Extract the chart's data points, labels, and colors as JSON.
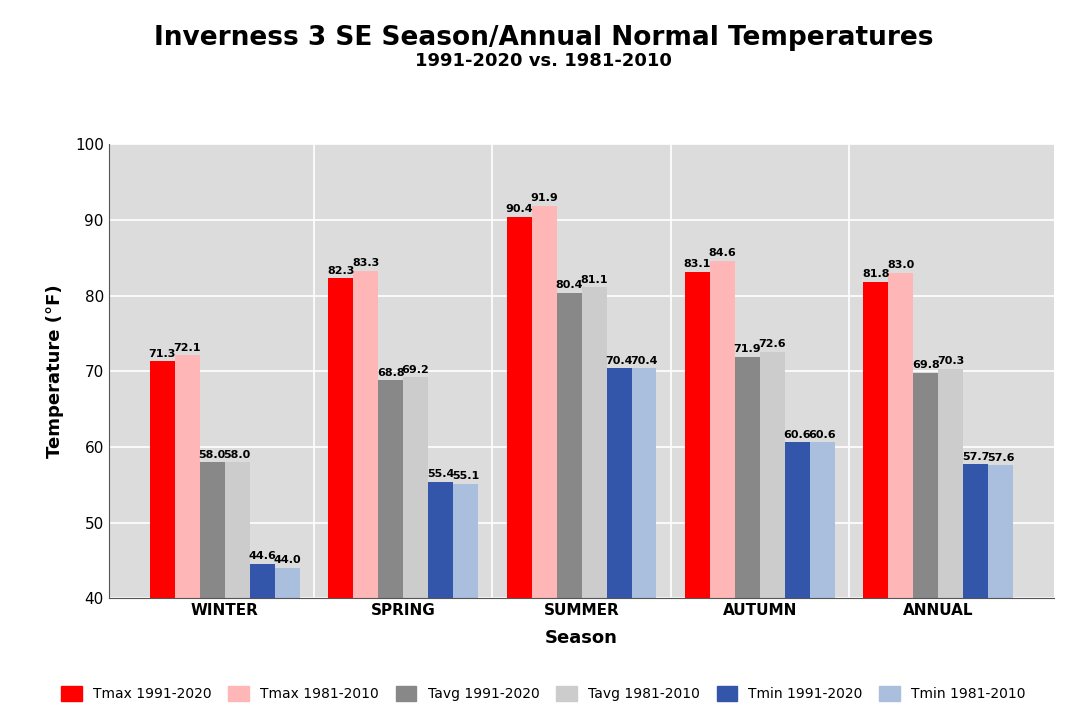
{
  "title": "Inverness 3 SE Season/Annual Normal Temperatures",
  "subtitle": "1991-2020 vs. 1981-2010",
  "xlabel": "Season",
  "ylabel": "Temperature (°F)",
  "categories": [
    "WINTER",
    "SPRING",
    "SUMMER",
    "AUTUMN",
    "ANNUAL"
  ],
  "tmax_new": [
    71.3,
    82.3,
    90.4,
    83.1,
    81.8
  ],
  "tmax_old": [
    72.1,
    83.3,
    91.9,
    84.6,
    83.0
  ],
  "tavg_new": [
    58.0,
    68.8,
    80.4,
    71.9,
    69.8
  ],
  "tavg_old": [
    58.0,
    69.2,
    81.1,
    72.6,
    70.3
  ],
  "tmin_new": [
    44.6,
    55.4,
    70.4,
    60.6,
    57.7
  ],
  "tmin_old": [
    44.0,
    55.1,
    70.4,
    60.6,
    57.6
  ],
  "colors": {
    "tmax_new": "#FF0000",
    "tmax_old": "#FFB6B6",
    "tavg_new": "#888888",
    "tavg_old": "#CCCCCC",
    "tmin_new": "#3355AA",
    "tmin_old": "#AABEDD"
  },
  "ylim": [
    40,
    100
  ],
  "yticks": [
    40,
    50,
    60,
    70,
    80,
    90,
    100
  ],
  "bar_width": 0.14,
  "background_color": "#DCDCDC",
  "legend_labels": [
    "Tmax 1991-2020",
    "Tmax 1981-2010",
    "Tavg 1991-2020",
    "Tavg 1981-2010",
    "Tmin 1991-2020",
    "Tmin 1981-2010"
  ],
  "label_fontsize": 8.0,
  "axis_fontsize": 12,
  "tick_fontsize": 11
}
